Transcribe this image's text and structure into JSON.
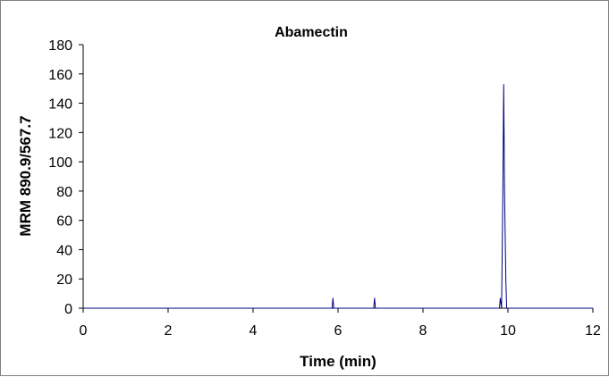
{
  "chart_data": {
    "type": "line",
    "title": "Abamectin",
    "xlabel": "Time (min)",
    "ylabel": "MRM 890.9/567.7",
    "xlim": [
      0,
      12
    ],
    "ylim": [
      0,
      180
    ],
    "x_ticks": [
      0,
      2,
      4,
      6,
      8,
      10,
      12
    ],
    "y_ticks": [
      0,
      20,
      40,
      60,
      80,
      100,
      120,
      140,
      160,
      180
    ],
    "grid": false,
    "legend": "none",
    "series": [
      {
        "color": "#000080",
        "x": [
          0,
          5.86,
          5.88,
          5.9,
          6.84,
          6.86,
          6.88,
          9.8,
          9.82,
          9.85,
          9.88,
          9.9,
          9.92,
          9.95,
          9.97,
          12
        ],
        "y": [
          0,
          0,
          7,
          0,
          0,
          7,
          0,
          0,
          7,
          0,
          80,
          153,
          80,
          20,
          0,
          0
        ]
      }
    ]
  }
}
